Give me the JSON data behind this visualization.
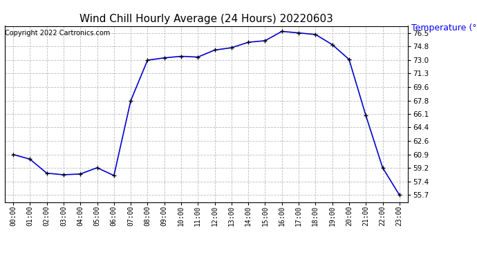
{
  "title": "Wind Chill Hourly Average (24 Hours) 20220603",
  "copyright": "Copyright 2022 Cartronics.com",
  "ylabel": "Temperature (°F)",
  "ylabel_color": "#0000ff",
  "hours": [
    "00:00",
    "01:00",
    "02:00",
    "03:00",
    "04:00",
    "05:00",
    "06:00",
    "07:00",
    "08:00",
    "09:00",
    "10:00",
    "11:00",
    "12:00",
    "13:00",
    "14:00",
    "15:00",
    "16:00",
    "17:00",
    "18:00",
    "19:00",
    "20:00",
    "21:00",
    "22:00",
    "23:00"
  ],
  "values": [
    60.9,
    60.3,
    58.5,
    58.3,
    58.4,
    59.2,
    58.2,
    67.8,
    73.0,
    73.3,
    73.5,
    73.4,
    74.3,
    74.6,
    75.3,
    75.5,
    76.7,
    76.5,
    76.3,
    75.0,
    73.1,
    65.9,
    59.2,
    55.7
  ],
  "line_color": "#0000cc",
  "marker": "+",
  "marker_color": "#000000",
  "marker_size": 5,
  "ylim_min": 54.8,
  "ylim_max": 77.4,
  "yticks": [
    55.7,
    57.4,
    59.2,
    60.9,
    62.6,
    64.4,
    66.1,
    67.8,
    69.6,
    71.3,
    73.0,
    74.8,
    76.5
  ],
  "grid_color": "#bbbbbb",
  "grid_style": "--",
  "bg_color": "#ffffff",
  "title_fontsize": 11,
  "copyright_fontsize": 7,
  "ylabel_fontsize": 9
}
